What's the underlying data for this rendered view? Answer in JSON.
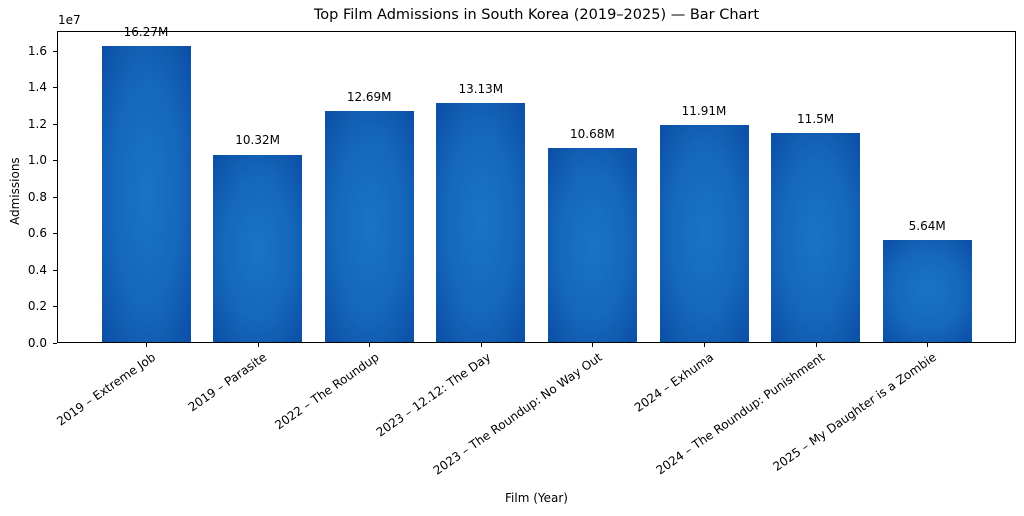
{
  "chart_data": {
    "type": "bar",
    "title": "Top Film Admissions in South Korea (2019–2025) — Bar Chart",
    "xlabel": "Film (Year)",
    "ylabel": "Admissions",
    "y_offset_label": "1e7",
    "ylim": [
      0,
      17080000
    ],
    "yticks": [
      0.0,
      0.2,
      0.4,
      0.6,
      0.8,
      1.0,
      1.2,
      1.4,
      1.6
    ],
    "ytick_labels": [
      "0.0",
      "0.2",
      "0.4",
      "0.6",
      "0.8",
      "1.0",
      "1.2",
      "1.4",
      "1.6"
    ],
    "grid": false,
    "legend": null,
    "bar_color": "#1565c0",
    "categories": [
      "2019 – Extreme Job",
      "2019 – Parasite",
      "2022 – The Roundup",
      "2023 – 12.12: The Day",
      "2023 – The Roundup: No Way Out",
      "2024 – Exhuma",
      "2024 – The Roundup: Punishment",
      "2025 – My Daughter is a Zombie"
    ],
    "values": [
      16270000,
      10320000,
      12690000,
      13130000,
      10680000,
      11910000,
      11500000,
      5640000
    ],
    "value_labels": [
      "16.27M",
      "10.32M",
      "12.69M",
      "13.13M",
      "10.68M",
      "11.91M",
      "11.5M",
      "5.64M"
    ]
  }
}
